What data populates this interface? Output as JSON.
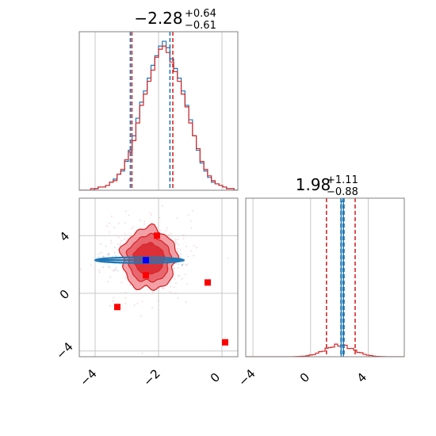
{
  "colors": {
    "blue": "#1f77b4",
    "red": "#d62728",
    "red_marker": "#ff0000",
    "blue_marker": "#0000ff",
    "grid": "#c8c8c8",
    "axes": "#808080"
  },
  "chart_data": [
    {
      "type": "histogram",
      "panel": "top-left",
      "title": {
        "value": "−2.28",
        "plus": "+0.64",
        "minus": "−0.61"
      },
      "xlim": [
        -4.5,
        0.5
      ],
      "grid": true,
      "series": [
        {
          "color": "blue",
          "counts": [
            0,
            0,
            0,
            0,
            1,
            2,
            2,
            3,
            5,
            7,
            10,
            12,
            18,
            25,
            34,
            45,
            55,
            62,
            70,
            78,
            84,
            90,
            93,
            89,
            82,
            76,
            70,
            62,
            53,
            44,
            34,
            25,
            17,
            12,
            8,
            5,
            4,
            3,
            2,
            1,
            1,
            0
          ],
          "quantiles": [
            -2.89,
            -2.28,
            -1.64
          ]
        },
        {
          "color": "red",
          "counts": [
            0,
            0,
            0,
            1,
            1,
            2,
            2,
            3,
            5,
            6,
            10,
            13,
            19,
            24,
            31,
            42,
            53,
            60,
            68,
            75,
            83,
            88,
            90,
            86,
            80,
            74,
            68,
            60,
            52,
            42,
            34,
            26,
            18,
            13,
            9,
            6,
            4,
            3,
            2,
            1,
            1,
            0
          ],
          "quantiles": [
            -2.89,
            -2.28,
            -1.6
          ]
        }
      ]
    },
    {
      "type": "histogram",
      "panel": "bottom-right",
      "title": {
        "value": "1.98",
        "plus": "+1.11",
        "minus": "−0.88"
      },
      "xlim": [
        -4.5,
        6.5
      ],
      "xticks": [
        "−4",
        "0",
        "4"
      ],
      "grid": true,
      "series": [
        {
          "color": "blue",
          "shape": "spike",
          "center": 2.2,
          "width": 0.16,
          "peak": 1.0,
          "quantiles": [
            2.1,
            2.24,
            2.32
          ]
        },
        {
          "color": "red",
          "shape": "gaussian",
          "center": 2.0,
          "sigma": 1.0,
          "peak": 0.075,
          "quantiles": [
            1.1,
            1.98,
            3.09
          ]
        }
      ]
    },
    {
      "type": "contour",
      "panel": "bottom-left",
      "xlim": [
        -4.5,
        0.5
      ],
      "ylim": [
        -4.4,
        6.6
      ],
      "xticks": [
        "−4",
        "−2",
        "0"
      ],
      "yticks": [
        "−4",
        "0",
        "4"
      ],
      "grid": true,
      "red_contours": {
        "center": [
          -2.3,
          2.4
        ],
        "radii": [
          [
            0.86,
            2.15
          ],
          [
            0.67,
            1.6
          ],
          [
            0.48,
            1.05
          ]
        ]
      },
      "blue_band": {
        "x_range": [
          -4.0,
          -1.2
        ],
        "y": 2.3
      },
      "red_markers": [
        [
          -2.05,
          4.0
        ],
        [
          -2.4,
          1.25
        ],
        [
          -0.45,
          0.75
        ],
        [
          -3.3,
          -0.95
        ],
        [
          0.1,
          -3.4
        ]
      ],
      "blue_marker": [
        -2.4,
        2.3
      ]
    }
  ]
}
